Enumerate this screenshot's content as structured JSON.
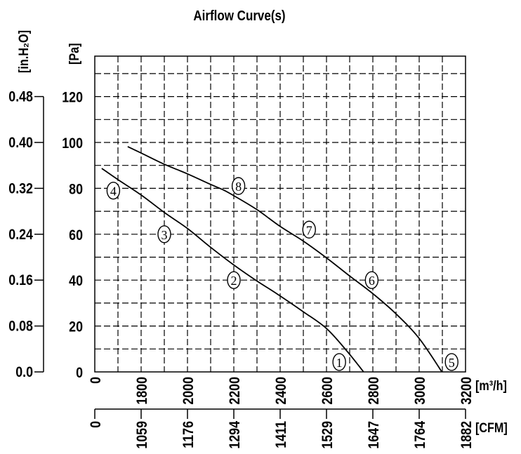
{
  "chart_data": {
    "type": "line",
    "title": "Airflow Curve(s)",
    "xlabel": "[m³/h]",
    "xlabel_cfm": "[CFM]",
    "ylabel": "[Pa]",
    "ylabel_inh2o": "[in.H₂O]",
    "x_tick_labels": [
      "0",
      "1800",
      "2000",
      "2200",
      "2400",
      "2600",
      "2800",
      "3000",
      "3200"
    ],
    "cfm_tick_labels": [
      "0",
      "1059",
      "1176",
      "1294",
      "1411",
      "1529",
      "1647",
      "1764",
      "1882"
    ],
    "y_tick_labels": [
      "0",
      "20",
      "40",
      "60",
      "80",
      "100",
      "120"
    ],
    "y_ticks": [
      0,
      20,
      40,
      60,
      80,
      100,
      120
    ],
    "inh2o_tick_labels": [
      "0.0",
      "0.08",
      "0.16",
      "0.24",
      "0.32",
      "0.40",
      "0.48"
    ],
    "ylim": [
      0,
      140
    ],
    "xlim": [
      1600,
      3200
    ],
    "grid": true,
    "grid_style": "dashed",
    "series": [
      {
        "x": [
          1630,
          1700,
          1800,
          1900,
          2000,
          2100,
          2200,
          2300,
          2376,
          2500,
          2600,
          2688,
          2760
        ],
        "y": [
          88.7,
          83.8,
          77.1,
          69.5,
          62.5,
          54.3,
          46.6,
          39.6,
          34.7,
          26.2,
          18.9,
          9.1,
          0
        ]
      },
      {
        "x": [
          1742,
          1800,
          1900,
          2000,
          2100,
          2155,
          2200,
          2300,
          2400,
          2500,
          2600,
          2700,
          2800,
          2900,
          3000,
          3098
        ],
        "y": [
          98.2,
          95.4,
          90.5,
          86.3,
          81.7,
          79.3,
          76.8,
          70.7,
          63.4,
          57,
          49.7,
          41.8,
          34.1,
          25.3,
          14.6,
          0
        ]
      }
    ],
    "point_labels": [
      {
        "label": "1",
        "x": 2655,
        "y": 4.3
      },
      {
        "label": "2",
        "x": 2200,
        "y": 40
      },
      {
        "label": "3",
        "x": 1900,
        "y": 60
      },
      {
        "label": "4",
        "x": 1680,
        "y": 79
      },
      {
        "label": "5",
        "x": 3140,
        "y": 4.3
      },
      {
        "label": "6",
        "x": 2795,
        "y": 40
      },
      {
        "label": "7",
        "x": 2525,
        "y": 62
      },
      {
        "label": "8",
        "x": 2220,
        "y": 81
      }
    ],
    "line_color": "#000000"
  }
}
